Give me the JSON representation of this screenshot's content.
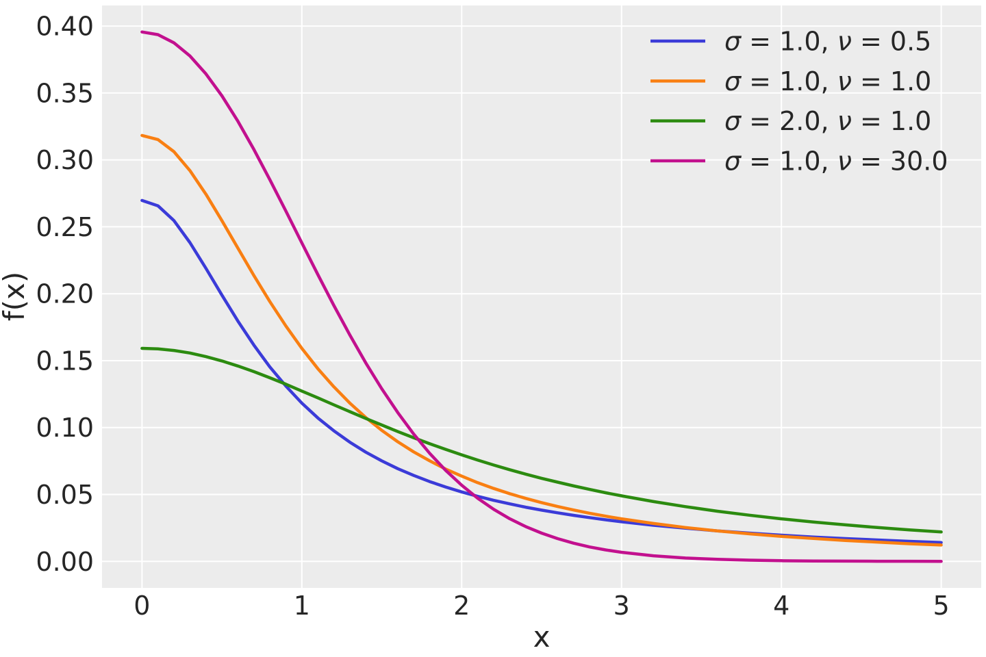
{
  "figure": {
    "background": "#ffffff",
    "plot_background": "#ececec",
    "grid_color": "#ffffff",
    "text_color": "#262626"
  },
  "chart_data": {
    "type": "line",
    "title": "",
    "xlabel": "x",
    "ylabel": "f(x)",
    "grid": true,
    "legend_position": "upper right",
    "xlim": [
      -0.25,
      5.25
    ],
    "ylim": [
      -0.0198,
      0.4154
    ],
    "x_ticks": [
      0,
      1,
      2,
      3,
      4,
      5
    ],
    "x_tick_labels": [
      "0",
      "1",
      "2",
      "3",
      "4",
      "5"
    ],
    "y_ticks": [
      0.0,
      0.05,
      0.1,
      0.15,
      0.2,
      0.25,
      0.3,
      0.35,
      0.4
    ],
    "y_tick_labels": [
      "0.00",
      "0.05",
      "0.10",
      "0.15",
      "0.20",
      "0.25",
      "0.30",
      "0.35",
      "0.40"
    ],
    "x": [
      0,
      0.1,
      0.2,
      0.3,
      0.4,
      0.5,
      0.6,
      0.7,
      0.8,
      0.9,
      1.0,
      1.1,
      1.2,
      1.3,
      1.4,
      1.5,
      1.6,
      1.7,
      1.8,
      1.9,
      2.0,
      2.1,
      2.2,
      2.3,
      2.4,
      2.5,
      2.6,
      2.7,
      2.8,
      2.9,
      3.0,
      3.2,
      3.4,
      3.6,
      3.8,
      4.0,
      4.2,
      4.4,
      4.6,
      4.8,
      5.0
    ],
    "series": [
      {
        "name": "σ = 1.0, ν = 0.5",
        "color": "#3b3bd8",
        "values": [
          0.2697,
          0.2657,
          0.2546,
          0.2382,
          0.219,
          0.199,
          0.1796,
          0.1616,
          0.1453,
          0.131,
          0.1183,
          0.1072,
          0.0976,
          0.0891,
          0.0816,
          0.0751,
          0.0693,
          0.0642,
          0.0596,
          0.0556,
          0.0519,
          0.0486,
          0.0456,
          0.043,
          0.0405,
          0.0383,
          0.0363,
          0.0344,
          0.0327,
          0.0311,
          0.0296,
          0.027,
          0.0248,
          0.0228,
          0.0211,
          0.0196,
          0.0182,
          0.017,
          0.016,
          0.015,
          0.0141
        ]
      },
      {
        "name": "σ = 1.0, ν = 1.0",
        "color": "#f97f12",
        "values": [
          0.3183,
          0.3152,
          0.3061,
          0.292,
          0.2744,
          0.2546,
          0.2341,
          0.2136,
          0.1941,
          0.1759,
          0.1592,
          0.144,
          0.1305,
          0.1183,
          0.1075,
          0.0979,
          0.0894,
          0.0818,
          0.0751,
          0.069,
          0.0637,
          0.0588,
          0.0545,
          0.0506,
          0.0471,
          0.0439,
          0.041,
          0.0384,
          0.036,
          0.0338,
          0.0318,
          0.0283,
          0.0253,
          0.0228,
          0.0206,
          0.0187,
          0.0171,
          0.0156,
          0.0144,
          0.0132,
          0.0122
        ]
      },
      {
        "name": "σ = 2.0, ν = 1.0",
        "color": "#2c8b10",
        "values": [
          0.1592,
          0.1588,
          0.1576,
          0.1557,
          0.153,
          0.1498,
          0.146,
          0.1418,
          0.1372,
          0.1324,
          0.1273,
          0.1222,
          0.117,
          0.1119,
          0.1068,
          0.1019,
          0.097,
          0.0924,
          0.0879,
          0.0837,
          0.0796,
          0.0757,
          0.072,
          0.0685,
          0.0652,
          0.0621,
          0.0592,
          0.0564,
          0.0538,
          0.0513,
          0.049,
          0.0447,
          0.0409,
          0.0375,
          0.0345,
          0.0318,
          0.0294,
          0.0273,
          0.0253,
          0.0235,
          0.022
        ]
      },
      {
        "name": "σ = 1.0, ν = 30.0",
        "color": "#c2108e",
        "values": [
          0.3956,
          0.3936,
          0.3875,
          0.3777,
          0.3643,
          0.3479,
          0.3289,
          0.3078,
          0.2852,
          0.2618,
          0.238,
          0.2143,
          0.1913,
          0.1692,
          0.1483,
          0.129,
          0.1112,
          0.0951,
          0.0807,
          0.068,
          0.0569,
          0.0472,
          0.0389,
          0.0319,
          0.026,
          0.0211,
          0.017,
          0.0136,
          0.0108,
          0.0086,
          0.0068,
          0.0042,
          0.0025,
          0.0015,
          0.0009,
          0.0005,
          0.0003,
          0.0002,
          0.0001,
          0.0001,
          0.0
        ]
      }
    ]
  }
}
